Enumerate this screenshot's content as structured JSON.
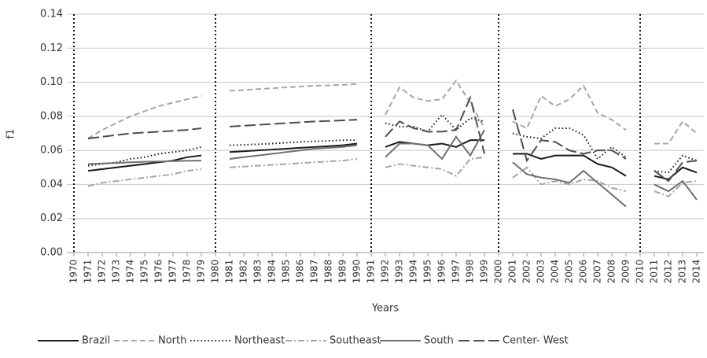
{
  "chart_data": {
    "type": "line",
    "y_label": "f1",
    "x_label": "Years",
    "categories": [
      "1970",
      "1971",
      "1972",
      "1973",
      "1974",
      "1975",
      "1976",
      "1977",
      "1978",
      "1979",
      "1980",
      "1981",
      "1982",
      "1983",
      "1984",
      "1985",
      "1986",
      "1987",
      "1988",
      "1989",
      "1990",
      "1991",
      "1992",
      "1993",
      "1994",
      "1995",
      "1996",
      "1997",
      "1998",
      "1999",
      "2000",
      "2001",
      "2002",
      "2003",
      "2004",
      "2005",
      "2006",
      "2007",
      "2008",
      "2009",
      "2010",
      "2011",
      "2012",
      "2013",
      "2014"
    ],
    "ylim": [
      0,
      0.14
    ],
    "yticks": [
      {
        "value": 0,
        "label": "0.00"
      },
      {
        "value": 0.02,
        "label": "0.02"
      },
      {
        "value": 0.04,
        "label": "0.04"
      },
      {
        "value": 0.06,
        "label": "0.06"
      },
      {
        "value": 0.08,
        "label": "0.08"
      },
      {
        "value": 0.1,
        "label": "0.10"
      },
      {
        "value": 0.12,
        "label": "0.12"
      },
      {
        "value": 0.14,
        "label": "0.14"
      }
    ],
    "grid": true,
    "legend": "bottom",
    "series": [
      {
        "name": "Brazil",
        "color": "#1a1a1a",
        "dash": "",
        "values": [
          null,
          0.048,
          0.049,
          0.05,
          0.051,
          0.052,
          0.053,
          0.054,
          0.056,
          0.057,
          null,
          0.059,
          0.0595,
          0.06,
          0.0605,
          0.061,
          0.0615,
          0.062,
          0.0625,
          0.063,
          0.064,
          null,
          0.062,
          0.065,
          0.064,
          0.063,
          0.064,
          0.062,
          0.066,
          0.066,
          null,
          0.058,
          0.058,
          0.055,
          0.057,
          0.057,
          0.057,
          0.052,
          0.05,
          0.045,
          null,
          0.045,
          0.043,
          0.05,
          0.047
        ]
      },
      {
        "name": "North",
        "color": "#a6a6a6",
        "dash": "7 4",
        "values": [
          null,
          0.067,
          0.072,
          0.076,
          0.08,
          0.083,
          0.086,
          0.088,
          0.09,
          0.092,
          null,
          0.095,
          0.0955,
          0.096,
          0.0965,
          0.097,
          0.0975,
          0.098,
          0.0982,
          0.0985,
          0.099,
          null,
          0.081,
          0.097,
          0.091,
          0.089,
          0.09,
          0.101,
          0.088,
          0.073,
          null,
          0.077,
          0.073,
          0.092,
          0.086,
          0.09,
          0.098,
          0.082,
          0.078,
          0.072,
          null,
          0.064,
          0.064,
          0.077,
          0.07
        ]
      },
      {
        "name": "Northeast",
        "color": "#1a1a1a",
        "dash": "1.5 3",
        "values": [
          null,
          0.051,
          0.052,
          0.053,
          0.055,
          0.056,
          0.058,
          0.059,
          0.06,
          0.062,
          null,
          0.063,
          0.0633,
          0.0636,
          0.064,
          0.0645,
          0.065,
          0.0653,
          0.0656,
          0.066,
          0.066,
          null,
          0.076,
          0.074,
          0.074,
          0.071,
          0.081,
          0.072,
          0.079,
          0.077,
          null,
          0.07,
          0.068,
          0.067,
          0.073,
          0.073,
          0.069,
          0.055,
          0.062,
          0.056,
          null,
          0.048,
          0.047,
          0.057,
          0.054
        ]
      },
      {
        "name": "Southeast",
        "color": "#a6a6a6",
        "dash": "8 3 2 3",
        "values": [
          null,
          0.039,
          0.041,
          0.042,
          0.043,
          0.044,
          0.045,
          0.046,
          0.048,
          0.049,
          null,
          0.05,
          0.0505,
          0.051,
          0.0515,
          0.052,
          0.0525,
          0.053,
          0.0535,
          0.054,
          0.055,
          null,
          0.05,
          0.052,
          0.051,
          0.05,
          0.049,
          0.045,
          0.055,
          0.056,
          null,
          0.044,
          0.05,
          0.04,
          0.042,
          0.04,
          0.043,
          0.042,
          0.038,
          0.036,
          null,
          0.036,
          0.033,
          0.041,
          0.042
        ]
      },
      {
        "name": "South",
        "color": "#707070",
        "dash": "",
        "values": [
          null,
          0.052,
          0.0523,
          0.0526,
          0.053,
          0.0533,
          0.0535,
          0.0537,
          0.0539,
          0.054,
          null,
          0.055,
          0.056,
          0.057,
          0.058,
          0.059,
          0.06,
          0.061,
          0.0615,
          0.062,
          0.063,
          null,
          0.056,
          0.064,
          0.064,
          0.063,
          0.055,
          0.068,
          0.057,
          0.072,
          null,
          0.053,
          0.046,
          0.044,
          0.043,
          0.041,
          0.048,
          0.041,
          0.034,
          0.027,
          null,
          0.04,
          0.036,
          0.042,
          0.031
        ]
      },
      {
        "name": "Center- West",
        "color": "#4d4d4d",
        "dash": "14 5",
        "values": [
          null,
          0.067,
          0.068,
          0.069,
          0.07,
          0.0705,
          0.071,
          0.0715,
          0.072,
          0.073,
          null,
          0.074,
          0.0745,
          0.075,
          0.0755,
          0.076,
          0.0765,
          0.077,
          0.0773,
          0.0776,
          0.078,
          null,
          0.068,
          0.077,
          0.073,
          0.071,
          0.071,
          0.072,
          0.091,
          0.058,
          null,
          0.084,
          0.054,
          0.066,
          0.065,
          0.06,
          0.058,
          0.06,
          0.06,
          0.055,
          null,
          0.048,
          0.042,
          0.053,
          0.054
        ]
      }
    ]
  }
}
